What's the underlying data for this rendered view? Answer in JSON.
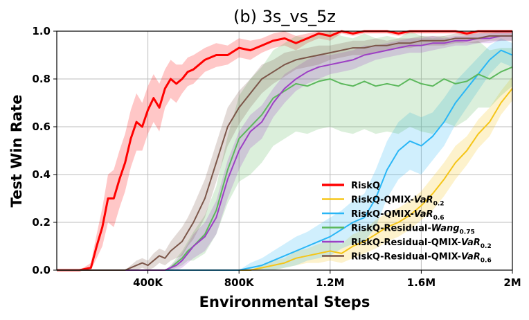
{
  "chart_data": {
    "type": "line",
    "title": "(b) 3s_vs_5z",
    "xlabel": "Environmental Steps",
    "ylabel": "Test Win Rate",
    "xlim": [
      0,
      2000000
    ],
    "ylim": [
      0.0,
      1.0
    ],
    "grid": true,
    "legend_position": "lower-right",
    "x_ticks": [
      {
        "value": 400000,
        "label": "400K"
      },
      {
        "value": 800000,
        "label": "800K"
      },
      {
        "value": 1200000,
        "label": "1.2M"
      },
      {
        "value": 1600000,
        "label": "1.6M"
      },
      {
        "value": 2000000,
        "label": "2M"
      }
    ],
    "y_ticks": [
      {
        "value": 0.0,
        "label": "0.0"
      },
      {
        "value": 0.2,
        "label": "0.2"
      },
      {
        "value": 0.4,
        "label": "0.4"
      },
      {
        "value": 0.6,
        "label": "0.6"
      },
      {
        "value": 0.8,
        "label": "0.8"
      },
      {
        "value": 1.0,
        "label": "1.0"
      }
    ],
    "x": [
      0,
      100000,
      150000,
      175000,
      200000,
      225000,
      250000,
      275000,
      300000,
      325000,
      350000,
      375000,
      400000,
      425000,
      450000,
      475000,
      500000,
      525000,
      550000,
      575000,
      600000,
      650000,
      700000,
      750000,
      800000,
      850000,
      900000,
      950000,
      1000000,
      1050000,
      1100000,
      1150000,
      1200000,
      1250000,
      1300000,
      1350000,
      1400000,
      1450000,
      1500000,
      1550000,
      1600000,
      1650000,
      1700000,
      1750000,
      1800000,
      1850000,
      1900000,
      1950000,
      2000000
    ],
    "series": [
      {
        "name": "RiskQ",
        "legend_main": "RiskQ",
        "legend_sub": "",
        "color": "#ff0000",
        "width": 3,
        "values": [
          0,
          0,
          0.01,
          0.1,
          0.18,
          0.3,
          0.3,
          0.38,
          0.45,
          0.55,
          0.62,
          0.6,
          0.67,
          0.72,
          0.68,
          0.76,
          0.8,
          0.78,
          0.8,
          0.83,
          0.84,
          0.88,
          0.9,
          0.9,
          0.93,
          0.92,
          0.94,
          0.96,
          0.97,
          0.95,
          0.97,
          0.99,
          0.98,
          1.0,
          0.99,
          1.0,
          1.0,
          1.0,
          0.99,
          1.0,
          1.0,
          1.0,
          1.0,
          1.0,
          0.99,
          1.0,
          1.0,
          1.0,
          1.0
        ],
        "band": [
          0.0,
          0.0,
          0.02,
          0.05,
          0.08,
          0.1,
          0.12,
          0.12,
          0.12,
          0.12,
          0.12,
          0.1,
          0.1,
          0.1,
          0.1,
          0.08,
          0.08,
          0.08,
          0.06,
          0.06,
          0.06,
          0.05,
          0.05,
          0.04,
          0.04,
          0.04,
          0.03,
          0.03,
          0.03,
          0.03,
          0.02,
          0.02,
          0.02,
          0.01,
          0.01,
          0.01,
          0.01,
          0.01,
          0.01,
          0.01,
          0.01,
          0.01,
          0.01,
          0.01,
          0.01,
          0.01,
          0.01,
          0.01,
          0.01
        ]
      },
      {
        "name": "RiskQ-QMIX-VaR0.2",
        "legend_main": "RiskQ-QMIX-",
        "legend_italic": "VaR",
        "legend_sub": "0.2",
        "color": "#f5c518",
        "width": 2,
        "values": [
          0,
          0,
          0,
          0,
          0,
          0,
          0,
          0,
          0,
          0,
          0,
          0,
          0,
          0,
          0,
          0,
          0,
          0,
          0,
          0,
          0,
          0,
          0,
          0,
          0,
          0,
          0.01,
          0.02,
          0.03,
          0.05,
          0.06,
          0.07,
          0.08,
          0.07,
          0.1,
          0.12,
          0.15,
          0.18,
          0.2,
          0.23,
          0.27,
          0.32,
          0.38,
          0.45,
          0.5,
          0.57,
          0.62,
          0.7,
          0.76
        ],
        "band": [
          0,
          0,
          0,
          0,
          0,
          0,
          0,
          0,
          0,
          0,
          0,
          0,
          0,
          0,
          0,
          0,
          0,
          0,
          0,
          0,
          0,
          0,
          0,
          0,
          0,
          0,
          0.01,
          0.02,
          0.02,
          0.03,
          0.03,
          0.04,
          0.04,
          0.04,
          0.05,
          0.05,
          0.06,
          0.06,
          0.06,
          0.06,
          0.06,
          0.07,
          0.07,
          0.07,
          0.06,
          0.06,
          0.06,
          0.05,
          0.05
        ]
      },
      {
        "name": "RiskQ-QMIX-VaR0.6",
        "legend_main": "RiskQ-QMIX-",
        "legend_italic": "VaR",
        "legend_sub": "0.6",
        "color": "#29b6f6",
        "width": 2,
        "values": [
          0,
          0,
          0,
          0,
          0,
          0,
          0,
          0,
          0,
          0,
          0,
          0,
          0,
          0,
          0,
          0,
          0,
          0,
          0,
          0,
          0,
          0,
          0,
          0,
          0,
          0.01,
          0.02,
          0.04,
          0.06,
          0.08,
          0.1,
          0.12,
          0.14,
          0.17,
          0.2,
          0.22,
          0.3,
          0.42,
          0.5,
          0.54,
          0.52,
          0.56,
          0.62,
          0.7,
          0.76,
          0.82,
          0.88,
          0.92,
          0.9
        ],
        "band": [
          0,
          0,
          0,
          0,
          0,
          0,
          0,
          0,
          0,
          0,
          0,
          0,
          0,
          0,
          0,
          0,
          0,
          0,
          0,
          0,
          0,
          0,
          0,
          0,
          0,
          0.02,
          0.03,
          0.04,
          0.05,
          0.06,
          0.06,
          0.07,
          0.08,
          0.08,
          0.09,
          0.1,
          0.12,
          0.12,
          0.12,
          0.12,
          0.12,
          0.1,
          0.1,
          0.09,
          0.08,
          0.07,
          0.06,
          0.05,
          0.05
        ]
      },
      {
        "name": "RiskQ-Residual-Wang0.75",
        "legend_main": "RiskQ-Residual-",
        "legend_italic": "Wang",
        "legend_sub": "0.75",
        "color": "#5cb85c",
        "width": 2,
        "values": [
          0,
          0,
          0,
          0,
          0,
          0,
          0,
          0,
          0,
          0,
          0,
          0,
          0,
          0,
          0,
          0,
          0.01,
          0.03,
          0.05,
          0.08,
          0.1,
          0.15,
          0.25,
          0.42,
          0.55,
          0.6,
          0.65,
          0.72,
          0.75,
          0.78,
          0.77,
          0.79,
          0.8,
          0.78,
          0.77,
          0.79,
          0.77,
          0.78,
          0.77,
          0.8,
          0.78,
          0.77,
          0.8,
          0.78,
          0.79,
          0.82,
          0.8,
          0.83,
          0.85
        ],
        "band": [
          0,
          0,
          0,
          0,
          0,
          0,
          0,
          0,
          0,
          0,
          0,
          0,
          0,
          0,
          0,
          0,
          0.01,
          0.02,
          0.03,
          0.04,
          0.06,
          0.08,
          0.1,
          0.14,
          0.18,
          0.2,
          0.2,
          0.2,
          0.2,
          0.2,
          0.2,
          0.2,
          0.2,
          0.2,
          0.2,
          0.2,
          0.2,
          0.2,
          0.2,
          0.2,
          0.2,
          0.2,
          0.18,
          0.18,
          0.16,
          0.14,
          0.12,
          0.1,
          0.08
        ]
      },
      {
        "name": "RiskQ-Residual-QMIX-VaR0.2",
        "legend_main": "RiskQ-Residual-QMIX-",
        "legend_italic": "VaR",
        "legend_sub": "0.2",
        "color": "#9c3fc4",
        "width": 2,
        "values": [
          0,
          0,
          0,
          0,
          0,
          0,
          0,
          0,
          0,
          0,
          0,
          0,
          0,
          0,
          0,
          0,
          0.01,
          0.02,
          0.04,
          0.07,
          0.1,
          0.14,
          0.22,
          0.38,
          0.5,
          0.58,
          0.62,
          0.7,
          0.76,
          0.8,
          0.83,
          0.85,
          0.86,
          0.87,
          0.88,
          0.9,
          0.91,
          0.92,
          0.93,
          0.94,
          0.94,
          0.95,
          0.95,
          0.96,
          0.96,
          0.97,
          0.97,
          0.98,
          0.98
        ],
        "band": [
          0,
          0,
          0,
          0,
          0,
          0,
          0,
          0,
          0,
          0,
          0,
          0,
          0,
          0,
          0,
          0,
          0.01,
          0.02,
          0.03,
          0.04,
          0.05,
          0.06,
          0.07,
          0.08,
          0.08,
          0.07,
          0.07,
          0.06,
          0.06,
          0.05,
          0.05,
          0.05,
          0.04,
          0.04,
          0.04,
          0.04,
          0.03,
          0.03,
          0.03,
          0.03,
          0.03,
          0.03,
          0.02,
          0.02,
          0.02,
          0.02,
          0.02,
          0.02,
          0.02
        ]
      },
      {
        "name": "RiskQ-Residual-QMIX-VaR0.6",
        "legend_main": "RiskQ-Residual-QMIX-",
        "legend_italic": "VaR",
        "legend_sub": "0.6",
        "color": "#7b5548",
        "width": 2,
        "values": [
          0,
          0,
          0,
          0,
          0,
          0,
          0,
          0,
          0,
          0.01,
          0.02,
          0.03,
          0.02,
          0.04,
          0.06,
          0.05,
          0.08,
          0.1,
          0.12,
          0.16,
          0.2,
          0.3,
          0.45,
          0.6,
          0.68,
          0.74,
          0.8,
          0.83,
          0.86,
          0.88,
          0.89,
          0.9,
          0.91,
          0.92,
          0.93,
          0.93,
          0.94,
          0.94,
          0.95,
          0.95,
          0.96,
          0.96,
          0.96,
          0.97,
          0.97,
          0.97,
          0.98,
          0.98,
          0.98
        ],
        "band": [
          0,
          0,
          0,
          0,
          0,
          0,
          0,
          0,
          0,
          0.01,
          0.02,
          0.02,
          0.02,
          0.03,
          0.03,
          0.03,
          0.04,
          0.05,
          0.06,
          0.06,
          0.07,
          0.08,
          0.08,
          0.08,
          0.07,
          0.06,
          0.06,
          0.05,
          0.05,
          0.04,
          0.04,
          0.04,
          0.03,
          0.03,
          0.03,
          0.03,
          0.03,
          0.02,
          0.02,
          0.02,
          0.02,
          0.02,
          0.02,
          0.02,
          0.02,
          0.02,
          0.02,
          0.02,
          0.02
        ]
      }
    ]
  }
}
